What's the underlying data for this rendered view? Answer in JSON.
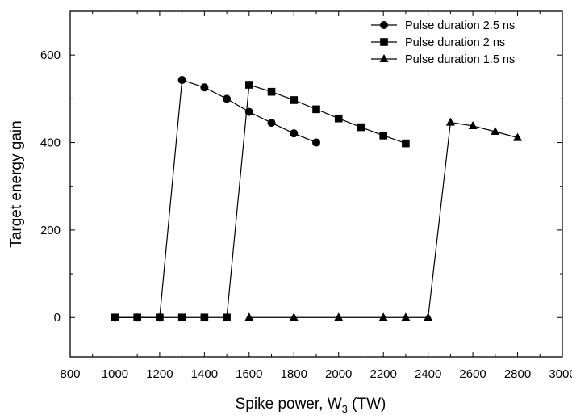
{
  "chart_data": {
    "type": "line",
    "title": "",
    "xlabel": "Spike power, W",
    "xlabel_sub": "3",
    "xlabel_unit": " (TW)",
    "ylabel": "Target energy gain",
    "xlim": [
      800,
      3000
    ],
    "ylim": [
      -90,
      700
    ],
    "xticks": [
      800,
      1000,
      1200,
      1400,
      1600,
      1800,
      2000,
      2200,
      2400,
      2600,
      2800,
      3000
    ],
    "yticks": [
      0,
      200,
      400,
      600
    ],
    "grid": false,
    "legend_position": "top-right",
    "series": [
      {
        "name": "Pulse duration 2.5 ns",
        "marker": "circle",
        "x": [
          1000,
          1100,
          1200,
          1300,
          1400,
          1500,
          1600,
          1700,
          1800,
          1900
        ],
        "y": [
          0,
          0,
          0,
          543,
          526,
          500,
          470,
          445,
          421,
          400
        ]
      },
      {
        "name": "Pulse duration 2 ns",
        "marker": "square",
        "x": [
          1000,
          1100,
          1200,
          1300,
          1400,
          1500,
          1600,
          1700,
          1800,
          1900,
          2000,
          2100,
          2200,
          2300
        ],
        "y": [
          0,
          0,
          0,
          0,
          0,
          0,
          532,
          516,
          497,
          476,
          455,
          435,
          416,
          398
        ]
      },
      {
        "name": "Pulse duration 1.5 ns",
        "marker": "triangle",
        "x": [
          1600,
          1800,
          2000,
          2200,
          2300,
          2400,
          2500,
          2600,
          2700,
          2800
        ],
        "y": [
          0,
          0,
          0,
          0,
          0,
          0,
          446,
          438,
          425,
          411
        ]
      }
    ]
  }
}
